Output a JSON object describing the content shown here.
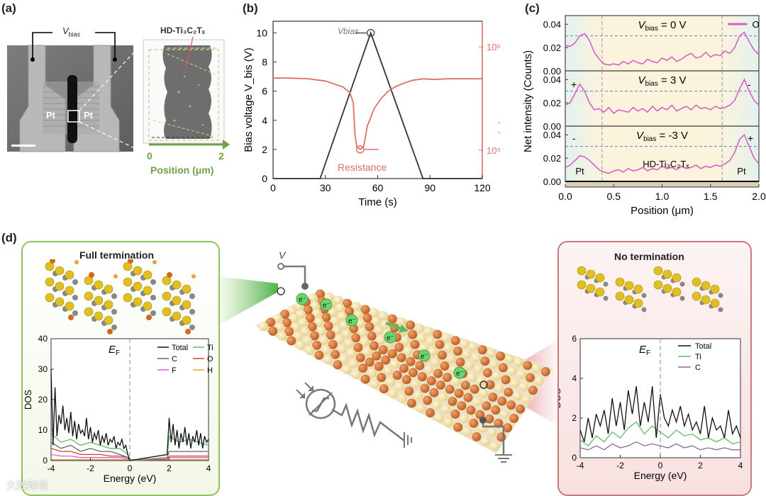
{
  "panel_a": {
    "label": "(a)",
    "vbias_main": "V",
    "vbias_sub": "bias",
    "pt_left": "Pt",
    "pt_right": "Pt",
    "hd_label": "HD-Ti₃C₂Tₓ",
    "axis_start": "0",
    "axis_end": "2",
    "axis_title": "Position (μm)"
  },
  "panel_b": {
    "label": "(b)",
    "annot_vbias": "Vbias",
    "annot_resistance": "Resistance"
  },
  "panel_c": {
    "label": "(c)",
    "legend_label": "O",
    "pt_left": "Pt",
    "pt_right": "Pt",
    "hd_label": "HD-Ti₃C₂Tₓ",
    "plus": "+",
    "minus": "-"
  },
  "panel_d": {
    "label": "(d)",
    "full_title": "Full termination",
    "no_title": "No termination",
    "v_label": "V",
    "electron": "e⁻",
    "watermark": "大数跨境"
  },
  "chart_data": [
    {
      "id": "b",
      "type": "line",
      "xlabel": "Time (s)",
      "ylabel": "Bias voltage V_bis (V)",
      "y2label": "Resistance (Ω)",
      "xlim": [
        0,
        120
      ],
      "ylim": [
        0,
        10.8
      ],
      "xticks": [
        "0",
        "30",
        "60",
        "90",
        "120"
      ],
      "yticks": [
        "0",
        "2",
        "4",
        "6",
        "8",
        "10"
      ],
      "y2ticks": [
        "10⁵",
        "10⁶"
      ],
      "series": [
        {
          "name": "Bias voltage",
          "color": "#333333",
          "x": [
            0,
            27,
            56,
            86,
            120
          ],
          "y": [
            0,
            0,
            10,
            0,
            0
          ]
        },
        {
          "name": "Resistance",
          "color": "#e0706a",
          "x": [
            0,
            10,
            20,
            30,
            40,
            44,
            46,
            47,
            48,
            50,
            52,
            54,
            56,
            58,
            62,
            66,
            70,
            75,
            80,
            86,
            92,
            100,
            110,
            120
          ],
          "y": [
            6.9,
            6.9,
            6.85,
            6.7,
            6.3,
            5.9,
            5.2,
            3.0,
            2.2,
            2.0,
            2.2,
            3.6,
            4.2,
            4.8,
            5.5,
            6.0,
            6.3,
            6.55,
            6.75,
            6.85,
            6.8,
            6.85,
            6.85,
            6.85
          ]
        }
      ]
    },
    {
      "id": "c",
      "type": "line",
      "xlabel": "Position (μm)",
      "ylabel": "Net intensity (Counts)",
      "xlim": [
        0,
        2.0
      ],
      "ylim": [
        0,
        0.045
      ],
      "xticks": [
        "0.0",
        "0.5",
        "1.0",
        "1.5",
        "2.0"
      ],
      "yticks": [
        "0.00",
        "0.02",
        "0.04"
      ],
      "subplots": [
        {
          "title": "Vbias = 0 V",
          "values": [
            0.022,
            0.021,
            0.024,
            0.03,
            0.032,
            0.026,
            0.016,
            0.01,
            0.006,
            0.005,
            0.006,
            0.005,
            0.008,
            0.006,
            0.009,
            0.007,
            0.006,
            0.01,
            0.008,
            0.007,
            0.011,
            0.009,
            0.012,
            0.008,
            0.01,
            0.013,
            0.015,
            0.011,
            0.012,
            0.016,
            0.012,
            0.014,
            0.013,
            0.017,
            0.015,
            0.02,
            0.03,
            0.033,
            0.025,
            0.018,
            0.014
          ]
        },
        {
          "title": "Vbias = 3 V",
          "values": [
            0.018,
            0.02,
            0.028,
            0.036,
            0.03,
            0.02,
            0.014,
            0.015,
            0.012,
            0.016,
            0.011,
            0.014,
            0.013,
            0.012,
            0.016,
            0.013,
            0.015,
            0.012,
            0.017,
            0.013,
            0.016,
            0.014,
            0.018,
            0.013,
            0.015,
            0.017,
            0.014,
            0.018,
            0.015,
            0.016,
            0.014,
            0.017,
            0.015,
            0.016,
            0.018,
            0.022,
            0.032,
            0.04,
            0.03,
            0.022,
            0.018
          ]
        },
        {
          "title": "Vbias = -3 V",
          "values": [
            0.012,
            0.014,
            0.018,
            0.022,
            0.021,
            0.018,
            0.014,
            0.01,
            0.008,
            0.007,
            0.009,
            0.01,
            0.008,
            0.011,
            0.009,
            0.01,
            0.012,
            0.009,
            0.011,
            0.01,
            0.013,
            0.011,
            0.012,
            0.01,
            0.013,
            0.011,
            0.012,
            0.014,
            0.011,
            0.013,
            0.012,
            0.014,
            0.013,
            0.015,
            0.018,
            0.025,
            0.036,
            0.04,
            0.03,
            0.02,
            0.015
          ]
        }
      ]
    },
    {
      "id": "d-left",
      "type": "line",
      "xlabel": "Energy (eV)",
      "ylabel": "DOS",
      "annotation": "EF",
      "xlim": [
        -4,
        4
      ],
      "ylim": [
        0,
        40
      ],
      "xticks": [
        "-4",
        "-2",
        "0",
        "2",
        "4"
      ],
      "yticks": [
        "0",
        "10",
        "20",
        "30",
        "40"
      ],
      "legend": [
        {
          "name": "Total",
          "color": "#111111"
        },
        {
          "name": "Ti",
          "color": "#5dbb63"
        },
        {
          "name": "C",
          "color": "#666666"
        },
        {
          "name": "O",
          "color": "#d93b3b"
        },
        {
          "name": "F",
          "color": "#d95fd9"
        },
        {
          "name": "H",
          "color": "#f0a030"
        }
      ],
      "series": [
        {
          "name": "Total",
          "color": "#111111",
          "x": [
            -4.0,
            -3.9,
            -3.8,
            -3.7,
            -3.6,
            -3.5,
            -3.4,
            -3.3,
            -3.2,
            -3.1,
            -3.0,
            -2.9,
            -2.8,
            -2.7,
            -2.6,
            -2.5,
            -2.4,
            -2.3,
            -2.2,
            -2.1,
            -2.0,
            -1.9,
            -1.8,
            -1.7,
            -1.6,
            -1.5,
            -1.4,
            -1.3,
            -1.2,
            -1.1,
            -1.0,
            -0.9,
            -0.8,
            -0.7,
            -0.6,
            -0.5,
            -0.4,
            -0.3,
            -0.2,
            -0.1,
            0.0,
            1.9,
            2.0,
            2.1,
            2.2,
            2.3,
            2.4,
            2.5,
            2.6,
            2.7,
            2.8,
            2.9,
            3.0,
            3.1,
            3.2,
            3.3,
            3.4,
            3.5,
            3.6,
            3.7,
            3.8,
            3.9,
            4.0
          ],
          "y": [
            30,
            5,
            24,
            8,
            15,
            12,
            18,
            10,
            14,
            9,
            16,
            8,
            13,
            7,
            12,
            9,
            10,
            8,
            14,
            7,
            11,
            6,
            9,
            7,
            10,
            5,
            8,
            6,
            9,
            5,
            7,
            6,
            8,
            4,
            6,
            5,
            7,
            4,
            5,
            2,
            0,
            2,
            14,
            6,
            12,
            5,
            10,
            4,
            9,
            6,
            11,
            5,
            9,
            4,
            8,
            6,
            10,
            5,
            9,
            4,
            8,
            6,
            7
          ]
        },
        {
          "name": "Ti",
          "color": "#5dbb63",
          "x": [
            -4.0,
            -3.5,
            -3.0,
            -2.5,
            -2.0,
            -1.5,
            -1.0,
            -0.5,
            -0.1,
            0.0,
            1.9,
            2.0,
            2.5,
            3.0,
            3.5,
            4.0
          ],
          "y": [
            9,
            6,
            7,
            5,
            6,
            5,
            4,
            4,
            2,
            0,
            1,
            8,
            6,
            7,
            6,
            5
          ]
        },
        {
          "name": "C",
          "color": "#666666",
          "x": [
            -4.0,
            -3.5,
            -3.0,
            -2.5,
            -2.0,
            -1.5,
            -1.0,
            -0.5,
            -0.1,
            0.0,
            1.9,
            2.0,
            2.5,
            3.0,
            3.5,
            4.0
          ],
          "y": [
            6,
            4,
            5,
            3,
            4,
            3,
            3,
            2,
            1,
            0,
            1,
            3,
            3,
            3,
            3,
            3
          ]
        },
        {
          "name": "O",
          "color": "#d93b3b",
          "x": [
            -4.0,
            -3.5,
            -3.0,
            -2.5,
            -2.0,
            -1.5,
            -1.0,
            -0.5,
            -0.1,
            0.0,
            1.9,
            2.0,
            2.5,
            3.0,
            3.5,
            4.0
          ],
          "y": [
            4,
            3,
            3,
            2,
            2,
            2,
            1.5,
            1.5,
            1,
            0,
            0.5,
            1.5,
            1.5,
            1.5,
            1.5,
            1.5
          ]
        },
        {
          "name": "F",
          "color": "#d95fd9",
          "x": [
            -4.0,
            -3.5,
            -3.0,
            -2.5,
            -2.0,
            -1.5,
            -1.0,
            -0.5,
            -0.1,
            0.0,
            1.9,
            2.0,
            2.5,
            3.0,
            3.5,
            4.0
          ],
          "y": [
            2,
            1.5,
            1.5,
            1,
            1,
            1,
            1,
            1,
            0.5,
            0,
            0.3,
            1,
            1,
            1,
            1,
            1
          ]
        },
        {
          "name": "H",
          "color": "#f0a030",
          "x": [
            -4.0,
            -2.0,
            0.0,
            2.0,
            4.0
          ],
          "y": [
            0.3,
            0.3,
            0.3,
            0.3,
            0.3
          ]
        }
      ]
    },
    {
      "id": "d-right",
      "type": "line",
      "xlabel": "Energy (eV)",
      "ylabel": "DOS",
      "annotation": "EF",
      "xlim": [
        -4,
        4
      ],
      "ylim": [
        0,
        6
      ],
      "xticks": [
        "-4",
        "-2",
        "0",
        "2",
        "4"
      ],
      "yticks": [
        "0",
        "2",
        "4",
        "6"
      ],
      "legend": [
        {
          "name": "Total",
          "color": "#111111"
        },
        {
          "name": "Ti",
          "color": "#5dbb63"
        },
        {
          "name": "C",
          "color": "#8a6a9a"
        }
      ],
      "series": [
        {
          "name": "Total",
          "color": "#111111",
          "x": [
            -4.0,
            -3.8,
            -3.6,
            -3.4,
            -3.2,
            -3.0,
            -2.8,
            -2.6,
            -2.4,
            -2.2,
            -2.0,
            -1.8,
            -1.6,
            -1.4,
            -1.2,
            -1.0,
            -0.8,
            -0.6,
            -0.4,
            -0.2,
            0.0,
            0.2,
            0.4,
            0.6,
            0.8,
            1.0,
            1.2,
            1.4,
            1.6,
            1.8,
            2.0,
            2.2,
            2.4,
            2.6,
            2.8,
            3.0,
            3.2,
            3.4,
            3.6,
            3.8,
            4.0
          ],
          "y": [
            1.4,
            0.8,
            2.0,
            1.0,
            2.2,
            1.6,
            2.4,
            1.2,
            3.0,
            1.6,
            2.8,
            1.4,
            3.4,
            2.2,
            3.6,
            1.6,
            2.8,
            1.8,
            3.6,
            1.0,
            3.2,
            2.0,
            1.6,
            2.4,
            1.8,
            2.6,
            1.6,
            2.2,
            1.4,
            1.8,
            1.2,
            2.6,
            1.0,
            2.0,
            1.4,
            1.6,
            1.0,
            2.4,
            1.2,
            1.6,
            1.0
          ]
        },
        {
          "name": "Ti",
          "color": "#5dbb63",
          "x": [
            -4.0,
            -3.6,
            -3.2,
            -2.8,
            -2.4,
            -2.0,
            -1.6,
            -1.2,
            -0.8,
            -0.4,
            0.0,
            0.4,
            0.8,
            1.2,
            1.6,
            2.0,
            2.4,
            2.8,
            3.2,
            3.6,
            4.0
          ],
          "y": [
            0.9,
            0.6,
            1.1,
            0.8,
            1.3,
            1.0,
            1.5,
            1.8,
            1.2,
            1.6,
            1.3,
            1.0,
            1.4,
            1.1,
            1.2,
            0.9,
            1.0,
            0.8,
            1.0,
            0.7,
            0.8
          ]
        },
        {
          "name": "C",
          "color": "#8a6a9a",
          "x": [
            -4.0,
            -3.6,
            -3.2,
            -2.8,
            -2.4,
            -2.0,
            -1.6,
            -1.2,
            -0.8,
            -0.4,
            0.0,
            0.4,
            0.8,
            1.2,
            1.6,
            2.0,
            2.4,
            2.8,
            3.2,
            3.6,
            4.0
          ],
          "y": [
            0.5,
            0.4,
            0.6,
            0.4,
            0.7,
            0.5,
            0.6,
            0.8,
            0.6,
            0.7,
            0.6,
            0.5,
            0.7,
            0.5,
            0.6,
            0.4,
            0.5,
            0.4,
            0.5,
            0.4,
            0.4
          ]
        }
      ]
    }
  ]
}
